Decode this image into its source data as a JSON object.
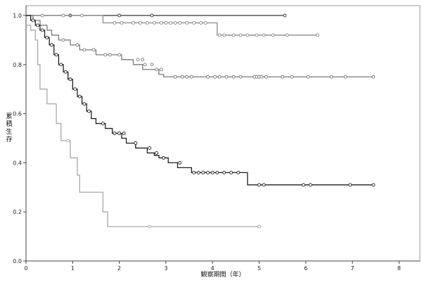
{
  "chart_data": {
    "type": "line",
    "subtype": "kaplan-meier step curves with censor markers",
    "xlabel": "観察期間（年）",
    "ylabel": "累積生存",
    "xlim": [
      0,
      8.5
    ],
    "ylim": [
      0,
      1.0
    ],
    "xticks": [
      "0",
      "1",
      "2",
      "3",
      "4",
      "5",
      "6",
      "7",
      "8"
    ],
    "yticks": [
      "0.0",
      "0.2",
      "0.4",
      "0.6",
      "0.8",
      "1.0"
    ],
    "grid": false,
    "legend": "none",
    "series": [
      {
        "color": "#333333",
        "steps": [
          [
            0,
            1.0
          ],
          [
            5.55,
            1.0
          ]
        ],
        "censored": [
          [
            0.95,
            1.0
          ],
          [
            2.0,
            1.0
          ],
          [
            2.7,
            1.0
          ],
          [
            5.55,
            1.0
          ]
        ]
      },
      {
        "color": "#8a8a8a",
        "steps": [
          [
            0,
            1.0
          ],
          [
            1.65,
            0.97
          ],
          [
            4.1,
            0.92
          ],
          [
            6.25,
            0.92
          ]
        ],
        "censored": [
          [
            0.35,
            1.0
          ],
          [
            0.8,
            1.0
          ],
          [
            1.2,
            1.0
          ],
          [
            1.9,
            0.97
          ],
          [
            2.05,
            0.97
          ],
          [
            2.3,
            0.97
          ],
          [
            2.45,
            0.97
          ],
          [
            2.6,
            0.97
          ],
          [
            2.75,
            0.97
          ],
          [
            2.9,
            0.97
          ],
          [
            3.0,
            0.97
          ],
          [
            3.1,
            0.97
          ],
          [
            3.2,
            0.97
          ],
          [
            3.3,
            0.97
          ],
          [
            3.45,
            0.97
          ],
          [
            3.6,
            0.97
          ],
          [
            3.75,
            0.97
          ],
          [
            3.85,
            0.97
          ],
          [
            4.15,
            0.92
          ],
          [
            4.25,
            0.92
          ],
          [
            4.45,
            0.92
          ],
          [
            4.6,
            0.92
          ],
          [
            4.75,
            0.92
          ],
          [
            4.95,
            0.92
          ],
          [
            5.1,
            0.92
          ],
          [
            5.3,
            0.92
          ],
          [
            5.6,
            0.92
          ],
          [
            6.25,
            0.92
          ]
        ]
      },
      {
        "color": "#7a7a7a",
        "steps": [
          [
            0,
            1.0
          ],
          [
            0.15,
            0.98
          ],
          [
            0.3,
            0.96
          ],
          [
            0.45,
            0.94
          ],
          [
            0.55,
            0.92
          ],
          [
            0.7,
            0.9
          ],
          [
            0.95,
            0.88
          ],
          [
            1.15,
            0.86
          ],
          [
            1.5,
            0.84
          ],
          [
            2.05,
            0.82
          ],
          [
            2.3,
            0.8
          ],
          [
            2.5,
            0.78
          ],
          [
            2.85,
            0.76
          ],
          [
            2.95,
            0.75
          ],
          [
            7.45,
            0.75
          ]
        ],
        "censored": [
          [
            0.8,
            0.9
          ],
          [
            1.1,
            0.88
          ],
          [
            1.25,
            0.86
          ],
          [
            1.45,
            0.86
          ],
          [
            1.7,
            0.84
          ],
          [
            1.8,
            0.84
          ],
          [
            2.0,
            0.84
          ],
          [
            2.4,
            0.82
          ],
          [
            2.5,
            0.82
          ],
          [
            2.55,
            0.8
          ],
          [
            2.7,
            0.8
          ],
          [
            2.8,
            0.78
          ],
          [
            2.9,
            0.78
          ],
          [
            3.2,
            0.75
          ],
          [
            3.35,
            0.75
          ],
          [
            3.45,
            0.75
          ],
          [
            3.55,
            0.75
          ],
          [
            3.9,
            0.75
          ],
          [
            4.05,
            0.75
          ],
          [
            4.15,
            0.75
          ],
          [
            4.3,
            0.75
          ],
          [
            4.45,
            0.75
          ],
          [
            4.6,
            0.75
          ],
          [
            4.9,
            0.75
          ],
          [
            4.95,
            0.75
          ],
          [
            5.0,
            0.75
          ],
          [
            5.05,
            0.75
          ],
          [
            5.15,
            0.75
          ],
          [
            5.5,
            0.75
          ],
          [
            5.7,
            0.75
          ],
          [
            6.05,
            0.75
          ],
          [
            6.55,
            0.75
          ],
          [
            6.85,
            0.75
          ],
          [
            7.45,
            0.75
          ]
        ]
      },
      {
        "color": "#1f1f1f",
        "steps": [
          [
            0,
            1.0
          ],
          [
            0.1,
            0.98
          ],
          [
            0.2,
            0.96
          ],
          [
            0.3,
            0.94
          ],
          [
            0.4,
            0.91
          ],
          [
            0.5,
            0.88
          ],
          [
            0.6,
            0.84
          ],
          [
            0.7,
            0.8
          ],
          [
            0.8,
            0.77
          ],
          [
            0.9,
            0.74
          ],
          [
            1.0,
            0.7
          ],
          [
            1.1,
            0.67
          ],
          [
            1.2,
            0.64
          ],
          [
            1.3,
            0.61
          ],
          [
            1.4,
            0.58
          ],
          [
            1.5,
            0.56
          ],
          [
            1.7,
            0.54
          ],
          [
            1.85,
            0.52
          ],
          [
            2.05,
            0.5
          ],
          [
            2.15,
            0.48
          ],
          [
            2.35,
            0.46
          ],
          [
            2.6,
            0.44
          ],
          [
            2.75,
            0.43
          ],
          [
            2.85,
            0.42
          ],
          [
            3.05,
            0.4
          ],
          [
            3.25,
            0.38
          ],
          [
            3.55,
            0.36
          ],
          [
            4.75,
            0.31
          ],
          [
            7.45,
            0.31
          ]
        ],
        "censored": [
          [
            0.15,
            0.98
          ],
          [
            0.25,
            0.96
          ],
          [
            0.35,
            0.94
          ],
          [
            0.45,
            0.91
          ],
          [
            0.55,
            0.88
          ],
          [
            0.65,
            0.84
          ],
          [
            0.75,
            0.8
          ],
          [
            0.85,
            0.77
          ],
          [
            0.95,
            0.74
          ],
          [
            1.05,
            0.7
          ],
          [
            1.15,
            0.67
          ],
          [
            1.25,
            0.64
          ],
          [
            1.35,
            0.61
          ],
          [
            1.65,
            0.56
          ],
          [
            1.9,
            0.52
          ],
          [
            2.0,
            0.52
          ],
          [
            2.1,
            0.52
          ],
          [
            2.35,
            0.48
          ],
          [
            2.65,
            0.46
          ],
          [
            2.8,
            0.44
          ],
          [
            2.95,
            0.42
          ],
          [
            3.3,
            0.4
          ],
          [
            3.6,
            0.36
          ],
          [
            3.7,
            0.36
          ],
          [
            3.8,
            0.36
          ],
          [
            3.9,
            0.36
          ],
          [
            4.0,
            0.36
          ],
          [
            4.1,
            0.36
          ],
          [
            4.25,
            0.36
          ],
          [
            4.4,
            0.36
          ],
          [
            4.55,
            0.36
          ],
          [
            5.0,
            0.31
          ],
          [
            5.1,
            0.31
          ],
          [
            5.95,
            0.31
          ],
          [
            6.1,
            0.31
          ],
          [
            6.95,
            0.31
          ],
          [
            7.45,
            0.31
          ]
        ]
      },
      {
        "color": "#a8a8a8",
        "steps": [
          [
            0,
            0.96
          ],
          [
            0.1,
            0.94
          ],
          [
            0.2,
            0.9
          ],
          [
            0.25,
            0.8
          ],
          [
            0.3,
            0.7
          ],
          [
            0.45,
            0.64
          ],
          [
            0.65,
            0.56
          ],
          [
            0.75,
            0.49
          ],
          [
            0.95,
            0.42
          ],
          [
            1.1,
            0.35
          ],
          [
            1.15,
            0.28
          ],
          [
            1.65,
            0.2
          ],
          [
            1.75,
            0.14
          ],
          [
            5.0,
            0.14
          ]
        ],
        "censored": [
          [
            0.9,
            0.49
          ],
          [
            2.65,
            0.14
          ],
          [
            5.0,
            0.14
          ]
        ]
      }
    ]
  }
}
